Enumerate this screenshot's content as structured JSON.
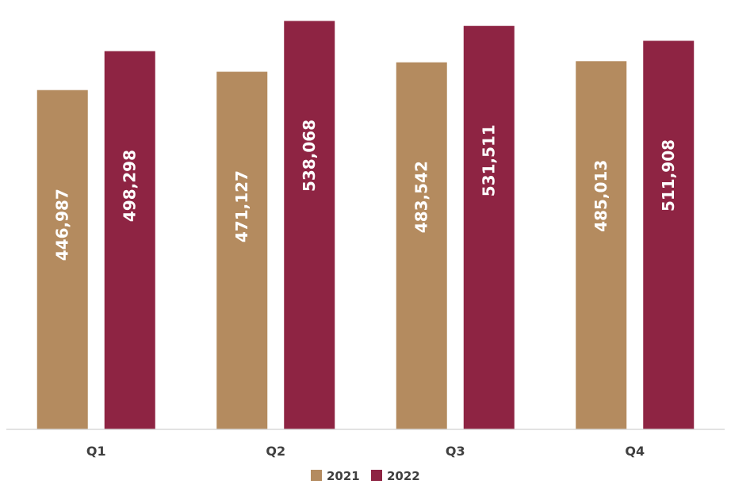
{
  "chart_data": {
    "type": "bar",
    "categories": [
      "Q1",
      "Q2",
      "Q3",
      "Q4"
    ],
    "series": [
      {
        "name": "2021",
        "color": "#B48B5F",
        "values": [
          446987,
          471127,
          483542,
          485013
        ]
      },
      {
        "name": "2022",
        "color": "#8E2443",
        "values": [
          498298,
          538068,
          531511,
          511908
        ]
      }
    ],
    "title": "",
    "xlabel": "",
    "ylabel": "",
    "ylim": [
      0,
      550000
    ],
    "grid": false,
    "legend": "bottom-center",
    "value_label_format": "thousands-comma",
    "value_label_orientation": "vertical",
    "axis_color": "#D9D9D9",
    "text_color": "#404040"
  }
}
